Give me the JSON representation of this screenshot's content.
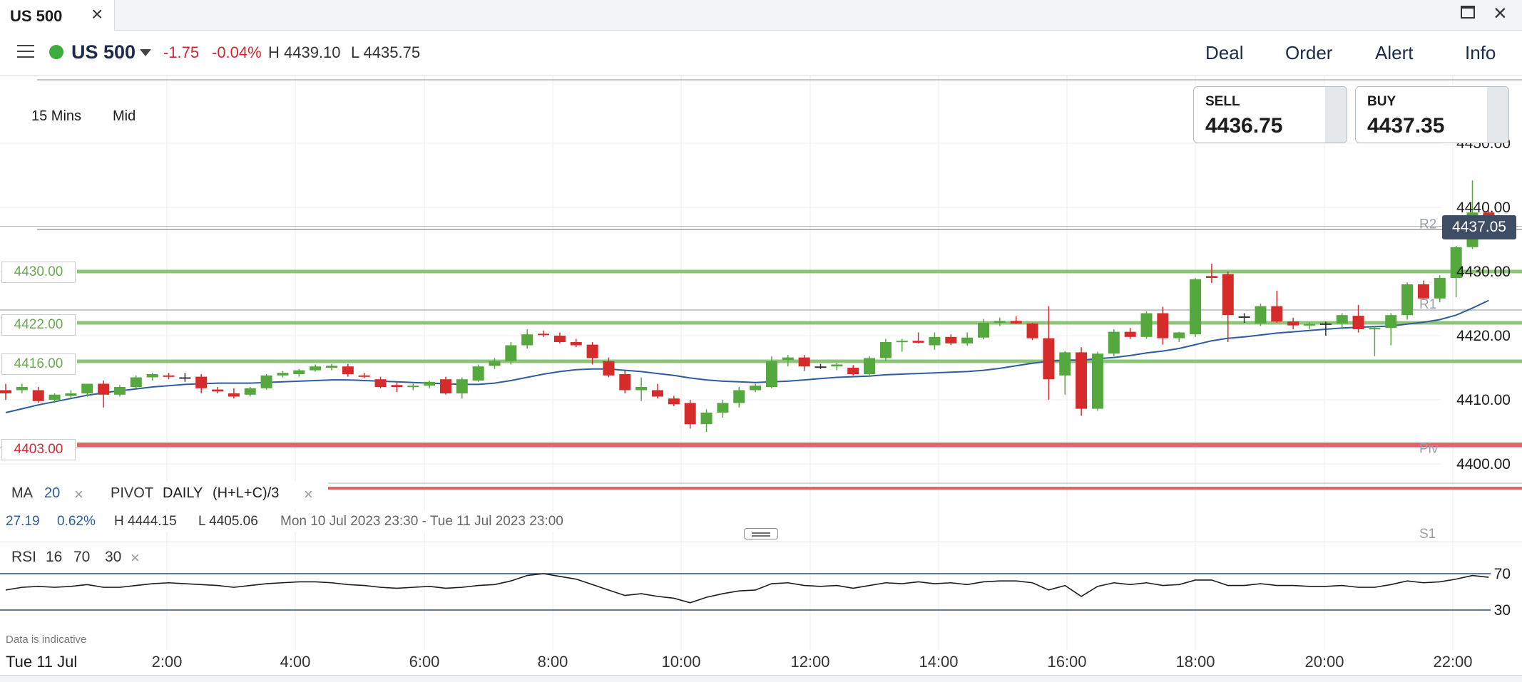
{
  "tab": {
    "title": "US 500",
    "close_icon": "×"
  },
  "window": {
    "maximize_icon": "maximize-icon",
    "close_icon": "×"
  },
  "header": {
    "instrument": "US 500",
    "status_color": "#3dac3d",
    "change": "-1.75",
    "change_pct": "-0.04%",
    "high": "H 4439.10",
    "low": "L 4435.75",
    "nav": {
      "deal": "Deal",
      "order": "Order",
      "alert": "Alert",
      "info": "Info"
    }
  },
  "toolbar": {
    "timeframe": "15 Mins",
    "price_type": "Mid"
  },
  "quotes": {
    "sell_label": "SELL",
    "sell": "4436.75",
    "buy_label": "BUY",
    "buy": "4437.35"
  },
  "levels": {
    "l1": "4430.00",
    "l2": "4422.00",
    "l3": "4416.00",
    "l4": "4403.00"
  },
  "current_price": "4437.05",
  "indicators": {
    "ma_label": "MA",
    "ma_period": "20",
    "remove": "×",
    "pivot_label": "PIVOT",
    "pivot_period": "DAILY",
    "pivot_formula": "(H+L+C)/3",
    "stats": {
      "change": "27.19",
      "change_pct": "0.62%",
      "high": "H 4444.15",
      "low": "L 4405.06",
      "range": "Mon 10 Jul 2023 23:30 - Tue 11 Jul 2023 23:00"
    },
    "rsi_label": "RSI",
    "rsi_period": "16",
    "rsi_overbought": "70",
    "rsi_oversold": "30"
  },
  "disclaimer": "Data is indicative",
  "time_axis": {
    "date": "Tue 11 Jul",
    "labels": [
      "2:00",
      "4:00",
      "6:00",
      "8:00",
      "10:00",
      "12:00",
      "14:00",
      "16:00",
      "18:00",
      "20:00",
      "22:00"
    ]
  },
  "colors": {
    "up": "#55a83e",
    "down": "#d52b2b",
    "ma": "#2f5c9e",
    "pivot_support_green": "#8cc47a",
    "pivot_red": "#e06666",
    "price_tag": "#3d4d66"
  },
  "chart_data": {
    "type": "candlestick",
    "y_ticks": [
      "4450.00",
      "4440.00",
      "4430.00",
      "4420.00",
      "4410.00",
      "4400.00"
    ],
    "ylim": [
      4397,
      4450
    ],
    "pivot_labels": [
      "R2",
      "R1",
      "Piv",
      "S1"
    ],
    "pivots": {
      "R2": 4436.5,
      "R1": 4424.0,
      "Piv": 4402.5,
      "S1": 4397.0
    },
    "support_lines": [
      4430,
      4422,
      4416
    ],
    "rsi_levels": [
      "70",
      "30"
    ],
    "candles": [
      [
        4411.5,
        4412.5,
        4410,
        4411
      ],
      [
        4411.5,
        4412.5,
        4411,
        4412
      ],
      [
        4411.5,
        4412,
        4409.5,
        4409.8
      ],
      [
        4410,
        4411,
        4409.5,
        4410.8
      ],
      [
        4410.6,
        4411.5,
        4410.2,
        4411
      ],
      [
        4411,
        4412.5,
        4410.5,
        4412.5
      ],
      [
        4412.5,
        4413,
        4408.8,
        4410.8
      ],
      [
        4410.8,
        4412.3,
        4410.5,
        4412
      ],
      [
        4412,
        4413.8,
        4411.8,
        4413.5
      ],
      [
        4413.5,
        4414.2,
        4413,
        4414
      ],
      [
        4413.8,
        4414.2,
        4413.2,
        4413.6
      ],
      [
        4413.4,
        4414.2,
        4412.8,
        4413.5
      ],
      [
        4413.6,
        4414,
        4411,
        4411.8
      ],
      [
        4411.6,
        4412,
        4411,
        4411.3
      ],
      [
        4411,
        4411.8,
        4410.2,
        4410.5
      ],
      [
        4410.8,
        4412,
        4410.5,
        4411.8
      ],
      [
        4411.8,
        4414,
        4411.6,
        4413.8
      ],
      [
        4413.8,
        4414.5,
        4413.5,
        4414.2
      ],
      [
        4414,
        4414.8,
        4413.6,
        4414.6
      ],
      [
        4414.6,
        4415.5,
        4414.4,
        4415.2
      ],
      [
        4415,
        4415.6,
        4414.6,
        4415.3
      ],
      [
        4415.2,
        4415.6,
        4413.6,
        4414
      ],
      [
        4413.8,
        4414.2,
        4413.4,
        4413.6
      ],
      [
        4413.2,
        4413.6,
        4411.8,
        4412
      ],
      [
        4412.3,
        4412.8,
        4411.2,
        4412
      ],
      [
        4412,
        4412.5,
        4411.5,
        4412.2
      ],
      [
        4412.2,
        4413,
        4411.8,
        4412.8
      ],
      [
        4413.2,
        4413.6,
        4410.8,
        4411
      ],
      [
        4411,
        4413.5,
        4410.2,
        4413.2
      ],
      [
        4413,
        4415.5,
        4412.8,
        4415.2
      ],
      [
        4415.3,
        4416.5,
        4414.8,
        4416
      ],
      [
        4416,
        4419,
        4415.5,
        4418.5
      ],
      [
        4418.5,
        4421,
        4418,
        4420.2
      ],
      [
        4420.3,
        4420.8,
        4419.8,
        4420.1
      ],
      [
        4420,
        4420.5,
        4418.8,
        4419
      ],
      [
        4419,
        4419.5,
        4418.2,
        4418.5
      ],
      [
        4418.6,
        4419,
        4415.5,
        4416.5
      ],
      [
        4416,
        4416.6,
        4413.5,
        4413.8
      ],
      [
        4414,
        4414.5,
        4411,
        4411.5
      ],
      [
        4411.5,
        4413.5,
        4409.8,
        4412
      ],
      [
        4411.5,
        4412.5,
        4410.2,
        4410.5
      ],
      [
        4410.2,
        4410.6,
        4409,
        4409.3
      ],
      [
        4409.5,
        4410,
        4405.5,
        4406.2
      ],
      [
        4406.2,
        4408.5,
        4405,
        4408
      ],
      [
        4408,
        4410,
        4407.2,
        4409.5
      ],
      [
        4409.5,
        4412,
        4408.8,
        4411.5
      ],
      [
        4411.5,
        4412.5,
        4411.2,
        4412.2
      ],
      [
        4412,
        4416.8,
        4411.8,
        4416
      ],
      [
        4416.2,
        4417,
        4415.2,
        4416.6
      ],
      [
        4416.6,
        4417,
        4414.5,
        4415.2
      ],
      [
        4415.2,
        4415.6,
        4414.8,
        4415.2
      ],
      [
        4415.2,
        4415.8,
        4414.6,
        4415.5
      ],
      [
        4415,
        4415.4,
        4413.8,
        4414
      ],
      [
        4414,
        4416.8,
        4413.5,
        4416.5
      ],
      [
        4416.5,
        4419.5,
        4416,
        4419
      ],
      [
        4419,
        4419.5,
        4417.5,
        4419.2
      ],
      [
        4419.2,
        4420.5,
        4418.8,
        4418.9
      ],
      [
        4418.5,
        4420.5,
        4417.8,
        4419.8
      ],
      [
        4419.8,
        4420.2,
        4418.5,
        4418.8
      ],
      [
        4418.8,
        4420.5,
        4418.4,
        4419.7
      ],
      [
        4419.7,
        4422.6,
        4419.4,
        4422
      ],
      [
        4422,
        4422.8,
        4421.5,
        4422.3
      ],
      [
        4422.3,
        4423,
        4421.8,
        4421.9
      ],
      [
        4421.9,
        4422,
        4419.3,
        4419.6
      ],
      [
        4419.6,
        4424.6,
        4410,
        4413.2
      ],
      [
        4413.8,
        4417.6,
        4410.8,
        4417.4
      ],
      [
        4417.4,
        4418.2,
        4407.5,
        4408.6
      ],
      [
        4408.6,
        4417.5,
        4408.3,
        4417.2
      ],
      [
        4417.2,
        4421,
        4416.8,
        4420.6
      ],
      [
        4420.6,
        4421.2,
        4419.5,
        4419.8
      ],
      [
        4419.8,
        4423.8,
        4419.5,
        4423.5
      ],
      [
        4423.5,
        4424.5,
        4418.6,
        4419.6
      ],
      [
        4419.6,
        4420.6,
        4419,
        4420.5
      ],
      [
        4420.2,
        4429,
        4419.8,
        4428.8
      ],
      [
        4429.3,
        4431.2,
        4428.2,
        4429
      ],
      [
        4429.6,
        4430,
        4419,
        4423.2
      ],
      [
        4423,
        4423.5,
        4422,
        4423
      ],
      [
        4421.9,
        4425,
        4421.5,
        4424.6
      ],
      [
        4424.6,
        4427,
        4422,
        4422.2
      ],
      [
        4422.2,
        4422.8,
        4421,
        4421.6
      ],
      [
        4421.6,
        4422.1,
        4421,
        4421.8
      ],
      [
        4421.8,
        4422.2,
        4420,
        4421.9
      ],
      [
        4421.9,
        4423.5,
        4421,
        4423.2
      ],
      [
        4423.1,
        4424.8,
        4420.5,
        4421
      ],
      [
        4421,
        4421.4,
        4416.8,
        4421.2
      ],
      [
        4421.2,
        4423.5,
        4418.5,
        4423.2
      ],
      [
        4423.2,
        4428.3,
        4422.5,
        4428
      ],
      [
        4428,
        4428.6,
        4425.8,
        4425.8
      ],
      [
        4425.8,
        4429.4,
        4425.2,
        4429
      ],
      [
        4429,
        4434,
        4426,
        4433.8
      ],
      [
        4433.8,
        4444.2,
        4433.5,
        4439.2
      ],
      [
        4439.2,
        4439.5,
        4436,
        4437.1
      ]
    ],
    "ma_values": [
      4408,
      4408.6,
      4409.2,
      4409.7,
      4410.2,
      4410.7,
      4411.1,
      4411.4,
      4411.7,
      4412,
      4412.2,
      4412.4,
      4412.5,
      4412.6,
      4412.6,
      4412.6,
      4412.7,
      4412.8,
      4412.9,
      4413,
      4413.1,
      4413.1,
      4413,
      4412.9,
      4412.8,
      4412.7,
      4412.6,
      4412.5,
      4412.4,
      4412.4,
      4412.6,
      4413,
      4413.5,
      4414,
      4414.4,
      4414.7,
      4414.8,
      4414.8,
      4414.6,
      4414.4,
      4414.1,
      4413.8,
      4413.4,
      4413.1,
      4412.9,
      4412.8,
      4412.7,
      4412.8,
      4412.9,
      4413.1,
      4413.3,
      4413.5,
      4413.6,
      4413.7,
      4413.9,
      4414,
      4414.1,
      4414.2,
      4414.3,
      4414.4,
      4414.6,
      4414.9,
      4415.3,
      4415.7,
      4416,
      4416.2,
      4416.2,
      4416.4,
      4416.6,
      4416.9,
      4417.3,
      4417.6,
      4418,
      4418.6,
      4419.2,
      4419.6,
      4419.8,
      4420.1,
      4420.4,
      4420.6,
      4420.8,
      4421,
      4421.2,
      4421.3,
      4421.4,
      4421.5,
      4421.8,
      4422.1,
      4422.5,
      4423.2,
      4424.3,
      4425.5
    ],
    "rsi_values": [
      52,
      55,
      56,
      55,
      56,
      58,
      55,
      55,
      57,
      59,
      60,
      59,
      58,
      57,
      55,
      57,
      59,
      60,
      61,
      61,
      60,
      58,
      57,
      55,
      54,
      55,
      56,
      54,
      55,
      57,
      58,
      62,
      68,
      70,
      67,
      64,
      58,
      52,
      46,
      48,
      45,
      43,
      38,
      44,
      48,
      51,
      52,
      59,
      60,
      57,
      56,
      57,
      54,
      57,
      60,
      59,
      61,
      59,
      60,
      58,
      61,
      62,
      62,
      60,
      52,
      57,
      45,
      56,
      60,
      58,
      60,
      57,
      58,
      63,
      63,
      57,
      57,
      59,
      57,
      57,
      56,
      56,
      57,
      55,
      55,
      58,
      62,
      60,
      61,
      64,
      68,
      66
    ]
  }
}
